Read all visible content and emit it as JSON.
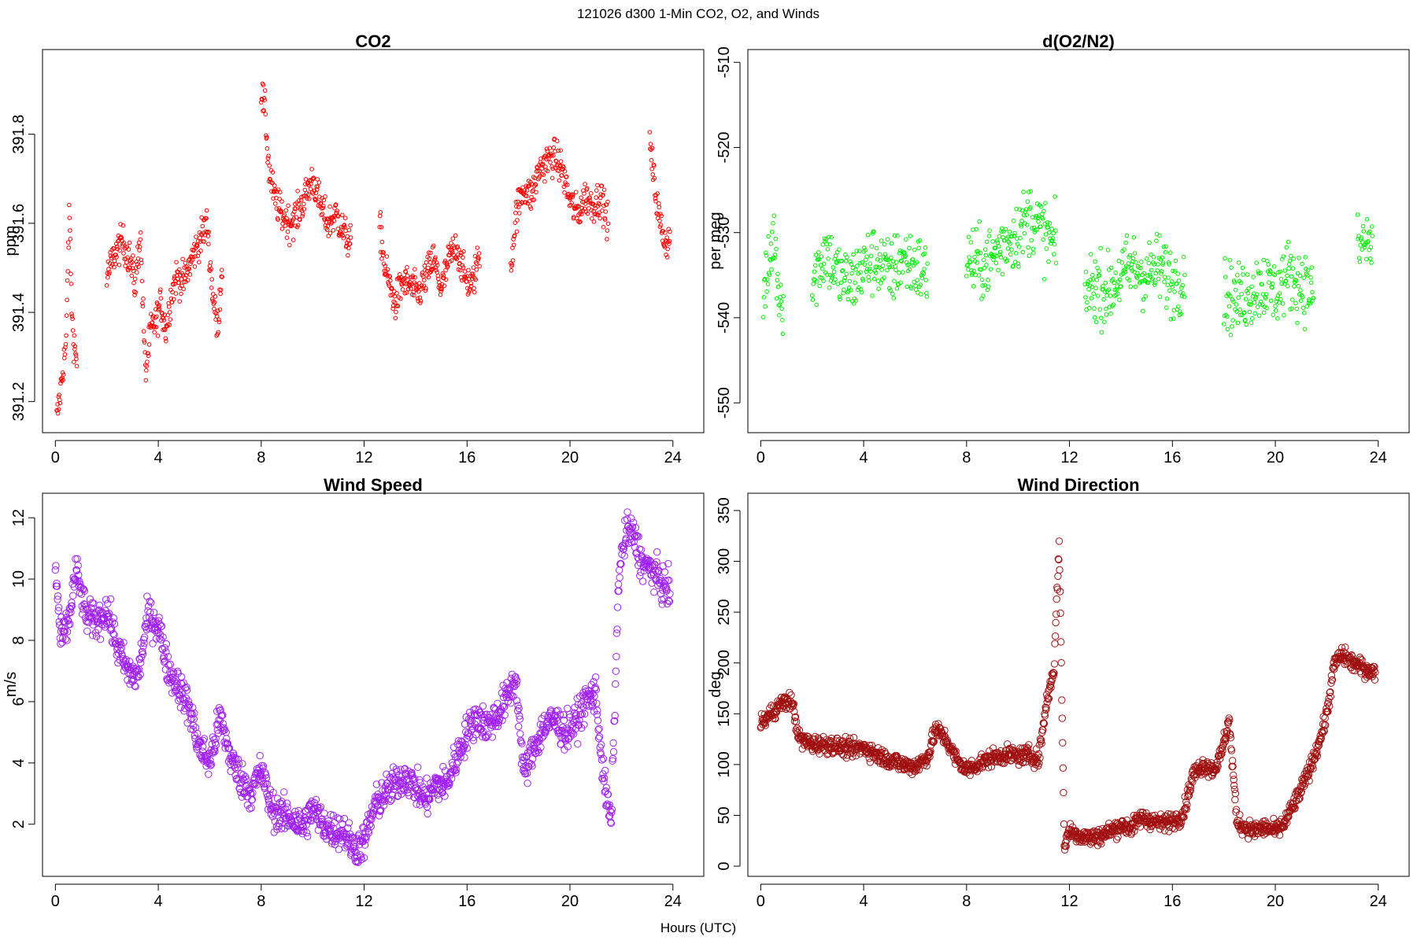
{
  "figure": {
    "title": "121026   d300   1-Min CO2, O2, and Winds",
    "xlabel": "Hours (UTC)"
  },
  "chart_data": [
    {
      "type": "scatter",
      "title": "CO2",
      "ylabel": "ppm",
      "color": "#ff0000",
      "marker": "open-circle-small",
      "xlim": [
        -0.5,
        25.2
      ],
      "ylim": [
        391.13,
        391.99
      ],
      "xticks": [
        0,
        4,
        8,
        12,
        16,
        20,
        24
      ],
      "yticks": [
        391.2,
        391.4,
        391.6,
        391.8
      ],
      "ytick_labels": [
        "391.2",
        "391.4",
        "391.6",
        "391.8"
      ],
      "segments": [
        [
          0.05,
          391.16
        ],
        [
          0.15,
          391.2
        ],
        [
          0.3,
          391.28
        ],
        [
          0.42,
          391.33
        ],
        [
          0.5,
          391.55
        ],
        [
          0.55,
          391.62
        ],
        [
          0.65,
          391.38
        ],
        [
          0.75,
          391.32
        ],
        [
          0.85,
          391.28
        ],
        [
          2.0,
          391.48
        ],
        [
          2.3,
          391.53
        ],
        [
          2.6,
          391.56
        ],
        [
          2.9,
          391.52
        ],
        [
          3.1,
          391.46
        ],
        [
          3.3,
          391.58
        ],
        [
          3.5,
          391.26
        ],
        [
          3.7,
          391.36
        ],
        [
          3.9,
          391.38
        ],
        [
          4.1,
          391.42
        ],
        [
          4.3,
          391.36
        ],
        [
          4.5,
          391.44
        ],
        [
          4.7,
          391.48
        ],
        [
          5.0,
          391.47
        ],
        [
          5.3,
          391.52
        ],
        [
          5.6,
          391.56
        ],
        [
          5.9,
          391.6
        ],
        [
          6.1,
          391.45
        ],
        [
          6.3,
          391.36
        ],
        [
          6.5,
          391.52
        ],
        [
          8.0,
          391.9
        ],
        [
          8.15,
          391.85
        ],
        [
          8.3,
          391.72
        ],
        [
          8.5,
          391.66
        ],
        [
          8.8,
          391.62
        ],
        [
          9.1,
          391.6
        ],
        [
          9.4,
          391.62
        ],
        [
          9.7,
          391.66
        ],
        [
          10.0,
          391.7
        ],
        [
          10.3,
          391.64
        ],
        [
          10.6,
          391.6
        ],
        [
          10.9,
          391.62
        ],
        [
          11.2,
          391.58
        ],
        [
          11.5,
          391.55
        ],
        [
          12.6,
          391.6
        ],
        [
          12.8,
          391.5
        ],
        [
          13.0,
          391.46
        ],
        [
          13.2,
          391.42
        ],
        [
          13.5,
          391.47
        ],
        [
          13.8,
          391.46
        ],
        [
          14.1,
          391.44
        ],
        [
          14.4,
          391.48
        ],
        [
          14.7,
          391.52
        ],
        [
          15.0,
          391.45
        ],
        [
          15.3,
          391.52
        ],
        [
          15.6,
          391.55
        ],
        [
          15.9,
          391.48
        ],
        [
          16.2,
          391.46
        ],
        [
          16.5,
          391.54
        ],
        [
          17.7,
          391.5
        ],
        [
          17.9,
          391.62
        ],
        [
          18.2,
          391.68
        ],
        [
          18.5,
          391.66
        ],
        [
          18.8,
          391.72
        ],
        [
          19.1,
          391.74
        ],
        [
          19.4,
          391.75
        ],
        [
          19.7,
          391.72
        ],
        [
          20.0,
          391.65
        ],
        [
          20.3,
          391.62
        ],
        [
          20.6,
          391.66
        ],
        [
          20.9,
          391.64
        ],
        [
          21.2,
          391.66
        ],
        [
          21.5,
          391.6
        ],
        [
          23.1,
          391.78
        ],
        [
          23.3,
          391.68
        ],
        [
          23.5,
          391.6
        ],
        [
          23.7,
          391.56
        ],
        [
          23.9,
          391.56
        ]
      ]
    },
    {
      "type": "scatter",
      "title": "d(O2/N2)",
      "ylabel": "per meg",
      "color": "#00ee00",
      "marker": "open-circle-small",
      "xlim": [
        -0.5,
        25.2
      ],
      "ylim": [
        -553.5,
        -508.5
      ],
      "xticks": [
        0,
        4,
        8,
        12,
        16,
        20,
        24
      ],
      "yticks": [
        -550,
        -540,
        -530,
        -520,
        -510
      ],
      "ytick_labels": [
        "-550",
        "-540",
        "-530",
        "-520",
        "-510"
      ],
      "segments": [
        [
          0.1,
          -537
        ],
        [
          0.3,
          -535
        ],
        [
          0.5,
          -530
        ],
        [
          0.7,
          -537
        ],
        [
          0.9,
          -538
        ],
        [
          2.0,
          -536
        ],
        [
          2.5,
          -532
        ],
        [
          3.0,
          -535
        ],
        [
          3.5,
          -536
        ],
        [
          4.0,
          -534
        ],
        [
          4.5,
          -533
        ],
        [
          5.0,
          -535
        ],
        [
          5.5,
          -533
        ],
        [
          6.0,
          -534
        ],
        [
          6.5,
          -535
        ],
        [
          8.0,
          -533
        ],
        [
          8.5,
          -534
        ],
        [
          9.0,
          -533
        ],
        [
          9.5,
          -531
        ],
        [
          10.0,
          -530
        ],
        [
          10.5,
          -528
        ],
        [
          11.0,
          -530
        ],
        [
          11.5,
          -532
        ],
        [
          12.6,
          -537
        ],
        [
          13.0,
          -536
        ],
        [
          13.5,
          -537
        ],
        [
          14.0,
          -535
        ],
        [
          14.5,
          -534
        ],
        [
          15.0,
          -535
        ],
        [
          15.5,
          -534
        ],
        [
          16.0,
          -536
        ],
        [
          16.5,
          -535
        ],
        [
          18.0,
          -537
        ],
        [
          18.5,
          -538
        ],
        [
          19.0,
          -537
        ],
        [
          19.5,
          -536
        ],
        [
          20.0,
          -537
        ],
        [
          20.5,
          -535
        ],
        [
          21.0,
          -536
        ],
        [
          21.5,
          -537
        ],
        [
          23.2,
          -532
        ],
        [
          23.5,
          -531
        ],
        [
          23.8,
          -532
        ]
      ]
    },
    {
      "type": "scatter",
      "title": "Wind Speed",
      "ylabel": "m/s",
      "color": "#a020f0",
      "marker": "open-circle",
      "xlim": [
        -0.5,
        25.2
      ],
      "ylim": [
        0.3,
        12.8
      ],
      "xticks": [
        0,
        4,
        8,
        12,
        16,
        20,
        24
      ],
      "yticks": [
        2,
        4,
        6,
        8,
        10,
        12
      ],
      "ytick_labels": [
        "2",
        "4",
        "6",
        "8",
        "10",
        "12"
      ],
      "segments": [
        [
          0.0,
          10.5
        ],
        [
          0.2,
          8.0
        ],
        [
          0.5,
          8.5
        ],
        [
          0.8,
          10.3
        ],
        [
          1.2,
          8.8
        ],
        [
          1.6,
          8.6
        ],
        [
          2.0,
          9.0
        ],
        [
          2.4,
          7.8
        ],
        [
          2.8,
          7.0
        ],
        [
          3.2,
          6.8
        ],
        [
          3.6,
          8.8
        ],
        [
          4.0,
          8.5
        ],
        [
          4.4,
          7.0
        ],
        [
          4.8,
          6.5
        ],
        [
          5.2,
          5.8
        ],
        [
          5.6,
          4.5
        ],
        [
          6.0,
          4.0
        ],
        [
          6.4,
          5.5
        ],
        [
          6.8,
          4.2
        ],
        [
          7.2,
          3.5
        ],
        [
          7.6,
          3.0
        ],
        [
          8.0,
          3.8
        ],
        [
          8.4,
          2.5
        ],
        [
          8.8,
          2.3
        ],
        [
          9.2,
          2.2
        ],
        [
          9.6,
          1.9
        ],
        [
          10.0,
          2.5
        ],
        [
          10.4,
          2.0
        ],
        [
          10.8,
          1.8
        ],
        [
          11.2,
          1.8
        ],
        [
          11.6,
          1.2
        ],
        [
          12.0,
          1.4
        ],
        [
          12.4,
          2.6
        ],
        [
          12.8,
          3.0
        ],
        [
          13.2,
          3.3
        ],
        [
          13.6,
          3.6
        ],
        [
          14.0,
          3.2
        ],
        [
          14.4,
          2.8
        ],
        [
          14.8,
          3.3
        ],
        [
          15.2,
          3.3
        ],
        [
          15.6,
          4.2
        ],
        [
          16.0,
          5.0
        ],
        [
          16.4,
          5.5
        ],
        [
          16.8,
          5.2
        ],
        [
          17.2,
          5.6
        ],
        [
          17.6,
          6.2
        ],
        [
          17.9,
          6.8
        ],
        [
          18.2,
          3.6
        ],
        [
          18.6,
          4.5
        ],
        [
          19.0,
          5.2
        ],
        [
          19.4,
          5.4
        ],
        [
          19.8,
          5.0
        ],
        [
          20.2,
          5.3
        ],
        [
          20.6,
          6.0
        ],
        [
          21.0,
          6.3
        ],
        [
          21.3,
          3.5
        ],
        [
          21.6,
          2.0
        ],
        [
          21.9,
          10.2
        ],
        [
          22.2,
          11.6
        ],
        [
          22.5,
          11.4
        ],
        [
          22.8,
          10.5
        ],
        [
          23.2,
          10.3
        ],
        [
          23.6,
          9.8
        ],
        [
          23.9,
          9.6
        ]
      ]
    },
    {
      "type": "scatter",
      "title": "Wind Direction",
      "ylabel": "deg",
      "color": "#a01010",
      "marker": "open-circle",
      "xlim": [
        -0.5,
        25.2
      ],
      "ylim": [
        -10,
        367
      ],
      "xticks": [
        0,
        4,
        8,
        12,
        16,
        20,
        24
      ],
      "yticks": [
        0,
        50,
        100,
        150,
        200,
        250,
        300,
        350
      ],
      "ytick_labels": [
        "0",
        "50",
        "100",
        "150",
        "200",
        "250",
        "300",
        "350"
      ],
      "segments": [
        [
          0.0,
          140
        ],
        [
          0.4,
          150
        ],
        [
          0.8,
          160
        ],
        [
          1.2,
          163
        ],
        [
          1.5,
          125
        ],
        [
          2.0,
          120
        ],
        [
          2.5,
          120
        ],
        [
          3.0,
          118
        ],
        [
          3.5,
          115
        ],
        [
          4.0,
          117
        ],
        [
          4.5,
          110
        ],
        [
          5.0,
          105
        ],
        [
          5.5,
          100
        ],
        [
          6.0,
          98
        ],
        [
          6.5,
          108
        ],
        [
          6.8,
          135
        ],
        [
          7.2,
          125
        ],
        [
          7.6,
          105
        ],
        [
          8.0,
          95
        ],
        [
          8.4,
          100
        ],
        [
          8.8,
          105
        ],
        [
          9.2,
          108
        ],
        [
          9.6,
          110
        ],
        [
          10.0,
          108
        ],
        [
          10.4,
          110
        ],
        [
          10.8,
          105
        ],
        [
          11.1,
          160
        ],
        [
          11.4,
          195
        ],
        [
          11.6,
          320
        ],
        [
          11.8,
          20
        ],
        [
          12.0,
          35
        ],
        [
          12.4,
          30
        ],
        [
          12.8,
          28
        ],
        [
          13.2,
          30
        ],
        [
          13.6,
          35
        ],
        [
          14.0,
          40
        ],
        [
          14.4,
          38
        ],
        [
          14.8,
          48
        ],
        [
          15.2,
          45
        ],
        [
          15.6,
          42
        ],
        [
          16.0,
          45
        ],
        [
          16.4,
          50
        ],
        [
          16.8,
          90
        ],
        [
          17.2,
          100
        ],
        [
          17.6,
          95
        ],
        [
          17.9,
          110
        ],
        [
          18.2,
          145
        ],
        [
          18.5,
          45
        ],
        [
          18.8,
          38
        ],
        [
          19.2,
          35
        ],
        [
          19.6,
          38
        ],
        [
          20.0,
          35
        ],
        [
          20.3,
          40
        ],
        [
          20.6,
          55
        ],
        [
          21.0,
          75
        ],
        [
          21.4,
          100
        ],
        [
          21.8,
          130
        ],
        [
          22.0,
          150
        ],
        [
          22.3,
          200
        ],
        [
          22.6,
          208
        ],
        [
          23.0,
          200
        ],
        [
          23.4,
          195
        ],
        [
          23.9,
          190
        ]
      ]
    }
  ]
}
